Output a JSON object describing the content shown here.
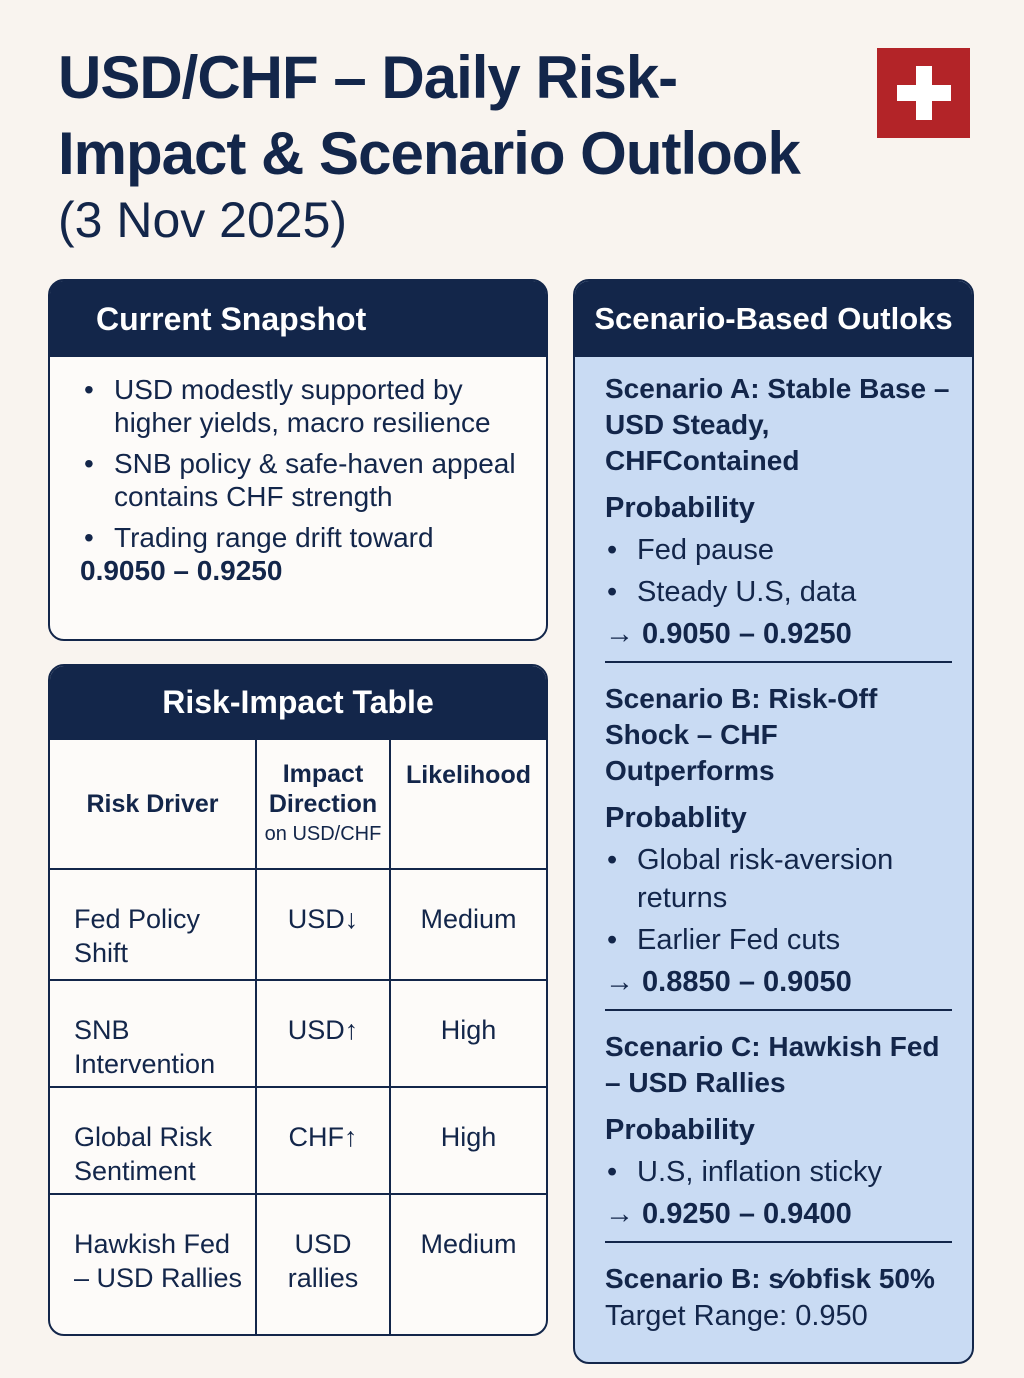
{
  "header": {
    "title_line1": "USD/CHF – Daily Risk-",
    "title_line2": "Impact & Scenario Outlook",
    "subtitle": "(3 Nov 2025)",
    "flag_icon": "swiss-flag",
    "colors": {
      "navy": "#13264a",
      "panel": "#c9dbf3",
      "flag": "#b32428",
      "background": "#f9f4ef"
    }
  },
  "snapshot": {
    "title": "Current Snapshot",
    "items": [
      "USD modestly supported by higher yields, macro resilience",
      "SNB policy & safe-haven appeal contains CHF strength",
      "Trading range drift toward"
    ],
    "range": "0.9050 – 0.9250"
  },
  "risk_table": {
    "title": "Risk-Impact Table",
    "headers": [
      "Risk Driver",
      "Impact Direction",
      "on USD/CHF",
      "Likelihood"
    ],
    "rows": [
      [
        "Fed Policy Shift",
        "USD↓",
        "Medium"
      ],
      [
        "SNB Intervention",
        "USD↑",
        "High"
      ],
      [
        "Global Risk Sentiment",
        "CHF↑",
        "High"
      ],
      [
        "Hawkish Fed – USD Rallies",
        "USD rallies",
        "Medium"
      ]
    ]
  },
  "scenarios": {
    "title": "Scenario-Based Outloks",
    "items": [
      {
        "title": "Scenario A: Stable Base – USD Steady, CHFContained",
        "prob": "Probability",
        "bullets": [
          "Fed pause",
          "Steady U.S, data"
        ],
        "range": "→ 0.9050 – 0.9250"
      },
      {
        "title": "Scenario B: Risk-Off Shock – CHF Outperforms",
        "prob": "Probablity",
        "bullets": [
          "Global risk-aversion returns",
          "Earlier Fed cuts"
        ],
        "range": "→ 0.8850 – 0.9050"
      },
      {
        "title": "Scenario C: Hawkish Fed – USD Rallies",
        "prob": "Probability",
        "bullets": [
          "U.S, inflation sticky"
        ],
        "range": "→ 0.9250 – 0.9400"
      }
    ],
    "summary": "Scenario B: s⁄obfisk 50%",
    "target": "Target Range: 0.950"
  }
}
